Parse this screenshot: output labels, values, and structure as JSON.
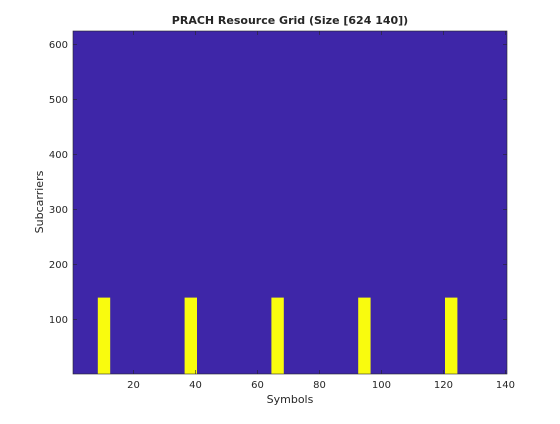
{
  "chart_data": {
    "type": "heatmap",
    "title": "PRACH Resource Grid (Size [624 140])",
    "xlabel": "Symbols",
    "ylabel": "Subcarriers",
    "xlim": [
      0.5,
      140.5
    ],
    "ylim": [
      0.5,
      624.5
    ],
    "x_ticks": [
      20,
      40,
      60,
      80,
      100,
      120,
      140
    ],
    "y_ticks": [
      100,
      200,
      300,
      400,
      500,
      600
    ],
    "y_direction": "normal",
    "grid": false,
    "background_value": 0,
    "background_color": "#3e26a8",
    "active_color": "#f9fb0e",
    "active_blocks": [
      {
        "symbols": [
          9,
          12
        ],
        "subcarriers": [
          1,
          139
        ]
      },
      {
        "symbols": [
          37,
          40
        ],
        "subcarriers": [
          1,
          139
        ]
      },
      {
        "symbols": [
          65,
          68
        ],
        "subcarriers": [
          1,
          139
        ]
      },
      {
        "symbols": [
          93,
          96
        ],
        "subcarriers": [
          1,
          139
        ]
      },
      {
        "symbols": [
          121,
          124
        ],
        "subcarriers": [
          1,
          139
        ]
      }
    ]
  }
}
